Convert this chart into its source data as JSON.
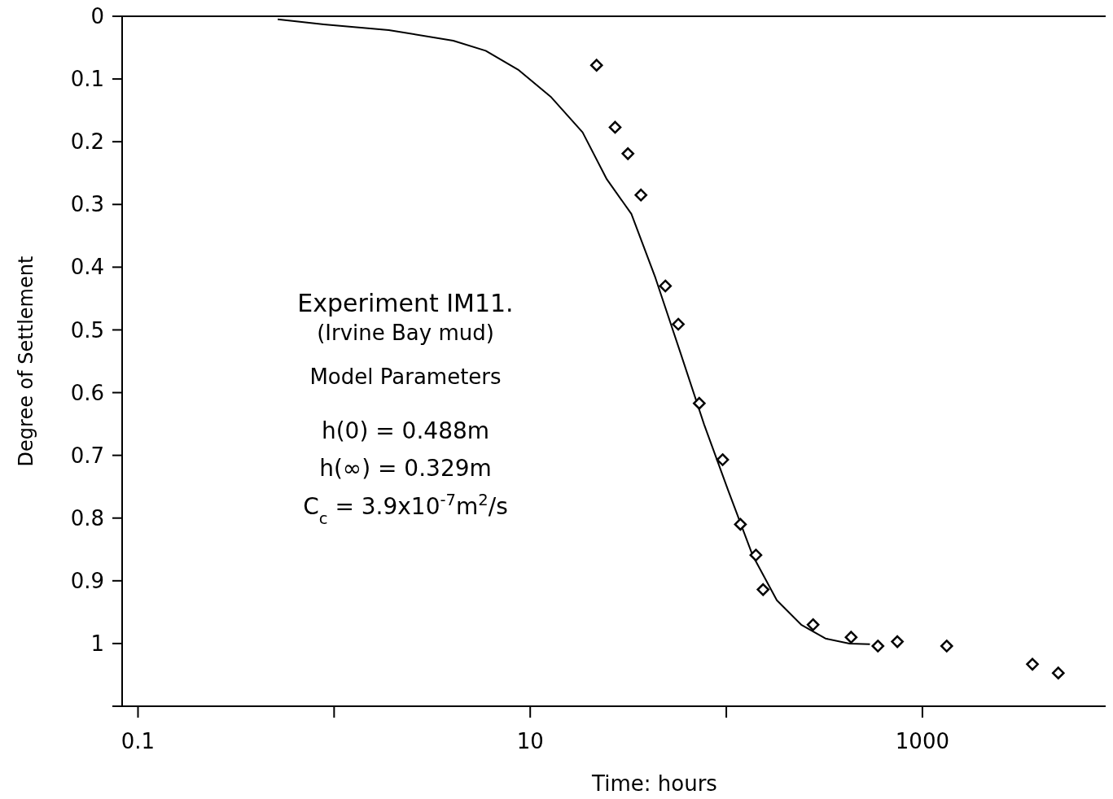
{
  "chart_data": {
    "type": "scatter",
    "xlabel": "Time: hours",
    "ylabel": "Degree of Settlement",
    "log": "x",
    "xlim": [
      0.083,
      8600
    ],
    "ylim": [
      1.1,
      0
    ],
    "xticks": [
      0.1,
      {
        "value": 1,
        "label": null
      },
      10,
      {
        "value": 100,
        "label": null
      },
      1000
    ],
    "yticks": [
      0,
      0.1,
      0.2,
      0.3,
      0.4,
      0.5,
      0.6,
      0.7,
      0.8,
      0.9,
      1,
      {
        "value": 1.1,
        "label": null
      }
    ],
    "grid": false,
    "annotations": [
      "Experiment IM11.",
      "(Irvine Bay mud)",
      "Model Parameters",
      "h(0) = 0.488m",
      "h(∞) = 0.329m",
      "C$_{c}$ = 3.9x10$^{-7}$m$^{2}$/s"
    ],
    "series": [
      {
        "type": "line",
        "color": "#000000",
        "marker": "none",
        "line_style": "solid",
        "x": [
          0.516,
          0.887,
          1.9,
          4.05,
          5.93,
          8.67,
          12.7,
          18.5,
          24.6,
          32.8,
          43.5,
          58.0,
          77.1,
          102,
          136,
          181,
          241,
          320,
          425,
          540
        ],
        "values": [
          0.005,
          0.013,
          0.022,
          0.039,
          0.055,
          0.085,
          0.128,
          0.185,
          0.26,
          0.315,
          0.417,
          0.534,
          0.651,
          0.755,
          0.859,
          0.931,
          0.97,
          0.992,
          1.0,
          1.001
        ]
      },
      {
        "color": "#000000",
        "marker": "diamond",
        "x": [
          21.8,
          27.1,
          31.5,
          36.7,
          48.9,
          56.9,
          72.8,
          95.8,
          118,
          141.5,
          154,
          277,
          433,
          593,
          745,
          1330,
          3640,
          4930
        ],
        "values": [
          0.078,
          0.177,
          0.219,
          0.285,
          0.43,
          0.491,
          0.617,
          0.707,
          0.81,
          0.859,
          0.914,
          0.97,
          0.99,
          1.004,
          0.997,
          1.004,
          1.033,
          1.047
        ]
      }
    ]
  }
}
